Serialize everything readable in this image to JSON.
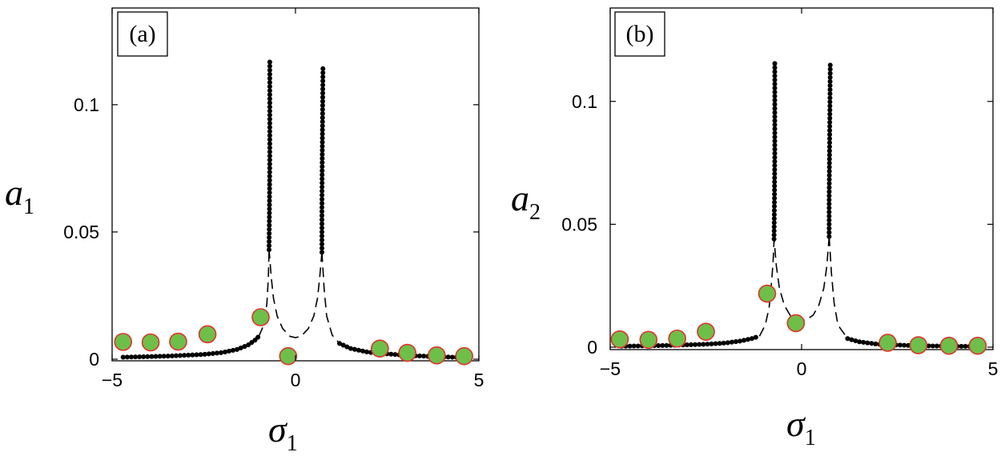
{
  "chart_data": [
    {
      "type": "scatter",
      "panel_label": "(a)",
      "xlabel": {
        "symbol": "σ",
        "subscript": "1"
      },
      "ylabel": {
        "symbol": "a",
        "subscript": "1"
      },
      "xlim": [
        -5,
        5
      ],
      "ylim": [
        0,
        0.138
      ],
      "xticks": [
        {
          "value": -5,
          "label": "−5"
        },
        {
          "value": 0,
          "label": "0"
        },
        {
          "value": 5,
          "label": "5"
        }
      ],
      "yticks": [
        {
          "value": 0,
          "label": "0"
        },
        {
          "value": 0.05,
          "label": "0.05"
        },
        {
          "value": 0.1,
          "label": "0.1"
        }
      ],
      "series": [
        {
          "name": "stable response (dots)",
          "segments": [
            [
              [
                -4.7,
                0.0008
              ],
              [
                -3.5,
                0.0012
              ],
              [
                -2.5,
                0.0019
              ],
              [
                -2.0,
                0.0026
              ],
              [
                -1.6,
                0.0038
              ],
              [
                -1.3,
                0.0055
              ],
              [
                -1.1,
                0.0075
              ],
              [
                -1.0,
                0.009
              ]
            ],
            [
              [
                -0.72,
                0.043
              ],
              [
                -0.71,
                0.06
              ],
              [
                -0.7,
                0.08
              ],
              [
                -0.7,
                0.1
              ],
              [
                -0.7,
                0.118
              ]
            ],
            [
              [
                0.72,
                0.042
              ],
              [
                0.72,
                0.06
              ],
              [
                0.73,
                0.08
              ],
              [
                0.74,
                0.1
              ],
              [
                0.75,
                0.115
              ]
            ],
            [
              [
                1.2,
                0.0062
              ],
              [
                1.5,
                0.0042
              ],
              [
                2.0,
                0.0027
              ],
              [
                3.0,
                0.0015
              ],
              [
                4.0,
                0.0009
              ],
              [
                4.8,
                0.0006
              ]
            ]
          ]
        },
        {
          "name": "unstable response (dashed)",
          "segments": [
            [
              [
                -1.0,
                0.009
              ],
              [
                -0.85,
                0.014
              ],
              [
                -0.78,
                0.022
              ],
              [
                -0.74,
                0.032
              ],
              [
                -0.72,
                0.043
              ]
            ],
            [
              [
                0.72,
                0.042
              ],
              [
                0.66,
                0.032
              ],
              [
                0.6,
                0.024
              ],
              [
                0.5,
                0.017
              ],
              [
                0.35,
                0.012
              ],
              [
                0.15,
                0.009
              ],
              [
                0.0,
                0.0085
              ],
              [
                -0.15,
                0.009
              ],
              [
                -0.35,
                0.012
              ],
              [
                -0.5,
                0.017
              ],
              [
                -0.6,
                0.024
              ],
              [
                -0.66,
                0.032
              ],
              [
                -0.72,
                0.043
              ]
            ],
            [
              [
                0.72,
                0.042
              ],
              [
                0.78,
                0.028
              ],
              [
                0.85,
                0.017
              ],
              [
                1.0,
                0.0095
              ],
              [
                1.2,
                0.0062
              ]
            ]
          ]
        },
        {
          "name": "markers",
          "points": [
            [
              -4.7,
              0.0068
            ],
            [
              -3.95,
              0.0066
            ],
            [
              -3.2,
              0.0069
            ],
            [
              -2.4,
              0.0098
            ],
            [
              -0.95,
              0.0165
            ],
            [
              -0.2,
              0.0012
            ],
            [
              2.3,
              0.0042
            ],
            [
              3.05,
              0.0025
            ],
            [
              3.85,
              0.0015
            ],
            [
              4.6,
              0.0012
            ]
          ]
        }
      ]
    },
    {
      "type": "scatter",
      "panel_label": "(b)",
      "xlabel": {
        "symbol": "σ",
        "subscript": "1"
      },
      "ylabel": {
        "symbol": "a",
        "subscript": "2"
      },
      "xlim": [
        -5,
        5
      ],
      "ylim": [
        0,
        0.138
      ],
      "xticks": [
        {
          "value": -5,
          "label": "−5"
        },
        {
          "value": 0,
          "label": "0"
        },
        {
          "value": 5,
          "label": "5"
        }
      ],
      "yticks": [
        {
          "value": 0,
          "label": "0"
        },
        {
          "value": 0.05,
          "label": "0.05"
        },
        {
          "value": 0.1,
          "label": "0.1"
        }
      ],
      "series": [
        {
          "name": "stable response (dots)",
          "segments": [
            [
              [
                -4.7,
                0.0004
              ],
              [
                -3.5,
                0.0007
              ],
              [
                -2.5,
                0.0012
              ],
              [
                -2.0,
                0.0017
              ],
              [
                -1.6,
                0.0025
              ],
              [
                -1.3,
                0.0035
              ],
              [
                -1.1,
                0.0045
              ]
            ],
            [
              [
                -0.72,
                0.044
              ],
              [
                -0.71,
                0.06
              ],
              [
                -0.7,
                0.08
              ],
              [
                -0.7,
                0.1
              ],
              [
                -0.7,
                0.116
              ]
            ],
            [
              [
                0.72,
                0.045
              ],
              [
                0.72,
                0.06
              ],
              [
                0.73,
                0.08
              ],
              [
                0.74,
                0.1
              ],
              [
                0.75,
                0.116
              ]
            ],
            [
              [
                1.2,
                0.0035
              ],
              [
                1.5,
                0.0022
              ],
              [
                2.0,
                0.0012
              ],
              [
                3.0,
                0.0006
              ],
              [
                4.0,
                0.0004
              ],
              [
                4.8,
                0.0003
              ]
            ]
          ]
        },
        {
          "name": "unstable response (dashed)",
          "segments": [
            [
              [
                -1.1,
                0.0045
              ],
              [
                -0.95,
                0.009
              ],
              [
                -0.85,
                0.016
              ],
              [
                -0.78,
                0.027
              ],
              [
                -0.74,
                0.036
              ],
              [
                -0.72,
                0.044
              ]
            ],
            [
              [
                0.72,
                0.045
              ],
              [
                0.66,
                0.033
              ],
              [
                0.58,
                0.024
              ],
              [
                0.45,
                0.017
              ],
              [
                0.3,
                0.013
              ],
              [
                0.1,
                0.011
              ],
              [
                -0.1,
                0.011
              ],
              [
                -0.3,
                0.013
              ],
              [
                -0.45,
                0.017
              ],
              [
                -0.58,
                0.024
              ],
              [
                -0.66,
                0.033
              ],
              [
                -0.72,
                0.044
              ]
            ],
            [
              [
                0.72,
                0.045
              ],
              [
                0.78,
                0.03
              ],
              [
                0.85,
                0.018
              ],
              [
                0.95,
                0.009
              ],
              [
                1.2,
                0.0035
              ]
            ]
          ]
        },
        {
          "name": "markers",
          "points": [
            [
              -4.75,
              0.0032
            ],
            [
              -4.0,
              0.003
            ],
            [
              -3.25,
              0.0035
            ],
            [
              -2.5,
              0.0063
            ],
            [
              -0.9,
              0.0218
            ],
            [
              -0.15,
              0.0098
            ],
            [
              2.25,
              0.0018
            ],
            [
              3.05,
              0.0008
            ],
            [
              3.85,
              0.0006
            ],
            [
              4.6,
              0.0006
            ]
          ]
        }
      ]
    }
  ],
  "colors": {
    "marker_fill": "#6dbf4a",
    "marker_stroke": "#e0322c",
    "curve": "#000000",
    "axis": "#000000"
  }
}
